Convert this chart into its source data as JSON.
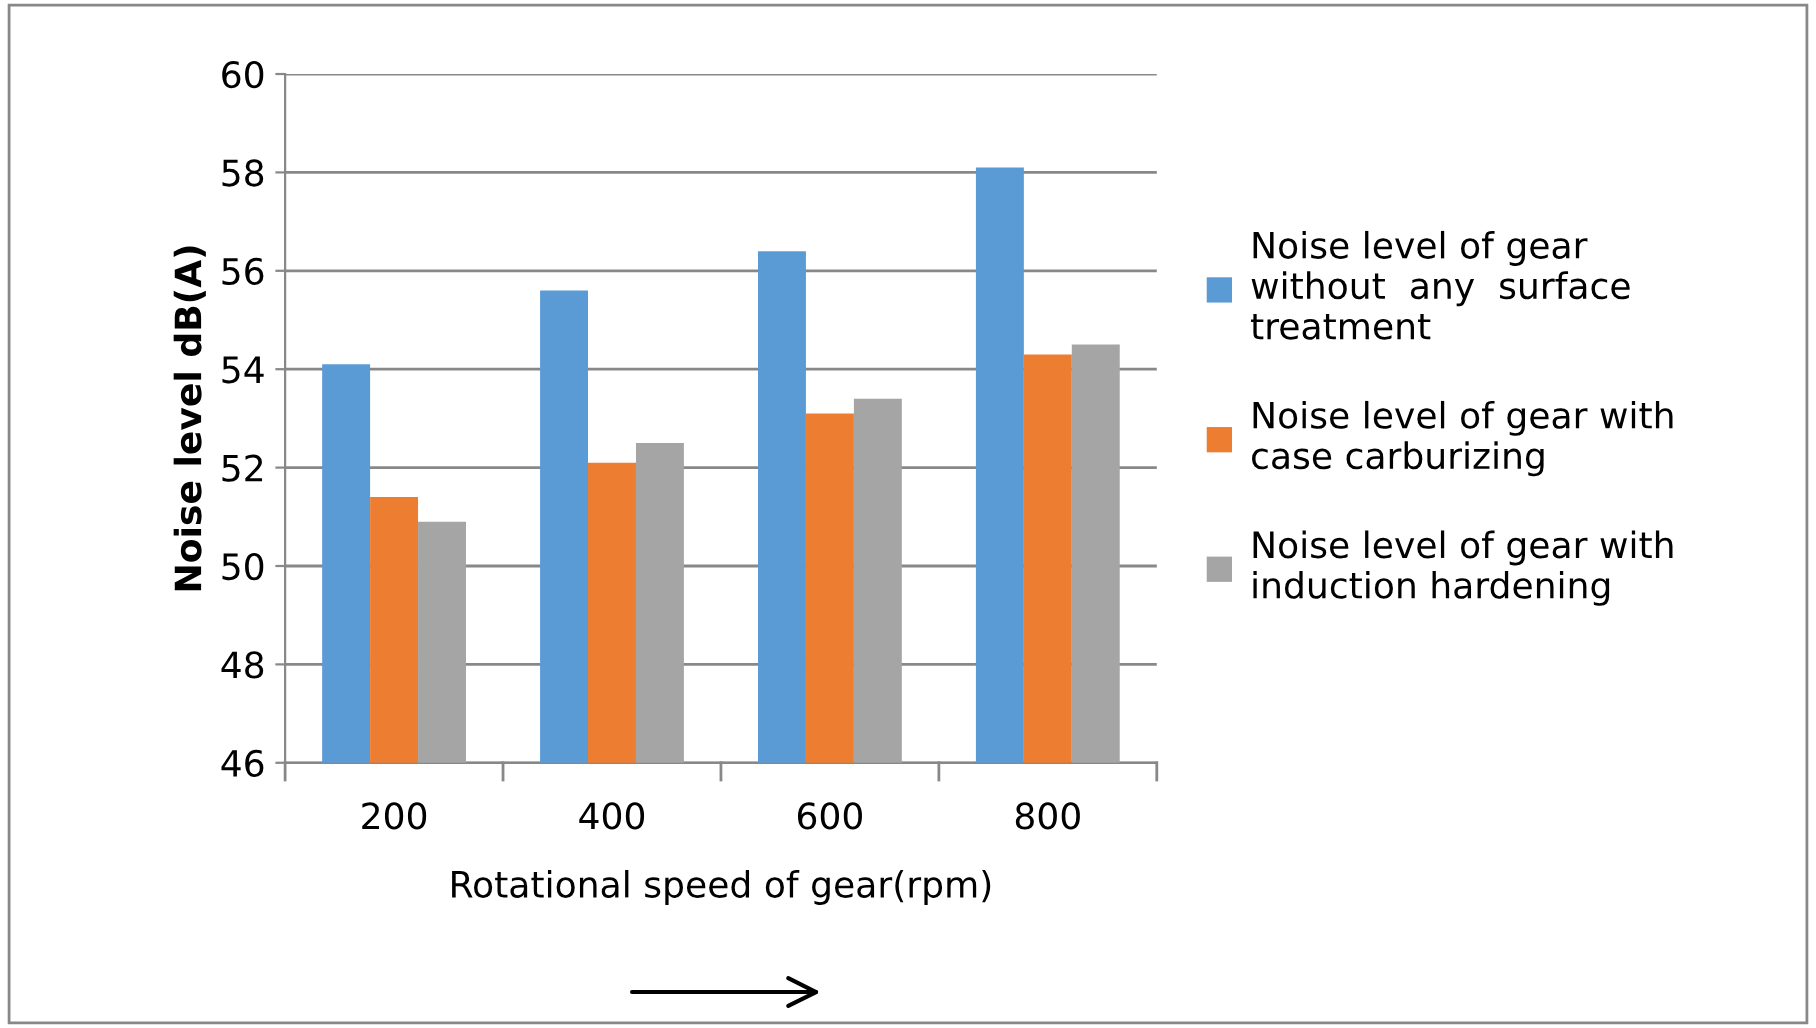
{
  "chart_data": {
    "type": "bar",
    "xlabel": "Rotational speed of gear(rpm)",
    "ylabel": "Noise level dB(A)",
    "categories": [
      "200",
      "400",
      "600",
      "800"
    ],
    "series": [
      {
        "name": "Noise level of gear\nwithout  any  surface\ntreatment",
        "color": "#5b9bd5",
        "values": [
          54.1,
          55.6,
          56.4,
          58.1
        ]
      },
      {
        "name": "Noise level of gear with\ncase carburizing",
        "color": "#ed7d31",
        "values": [
          51.4,
          52.1,
          53.1,
          54.3
        ]
      },
      {
        "name": "Noise level of gear with\ninduction hardening",
        "color": "#a5a5a5",
        "values": [
          50.9,
          52.5,
          53.4,
          54.5
        ]
      }
    ],
    "ylim": [
      46,
      60
    ],
    "yticks": [
      46,
      48,
      50,
      52,
      54,
      56,
      58,
      60
    ],
    "grid": "y",
    "legend": "right"
  }
}
